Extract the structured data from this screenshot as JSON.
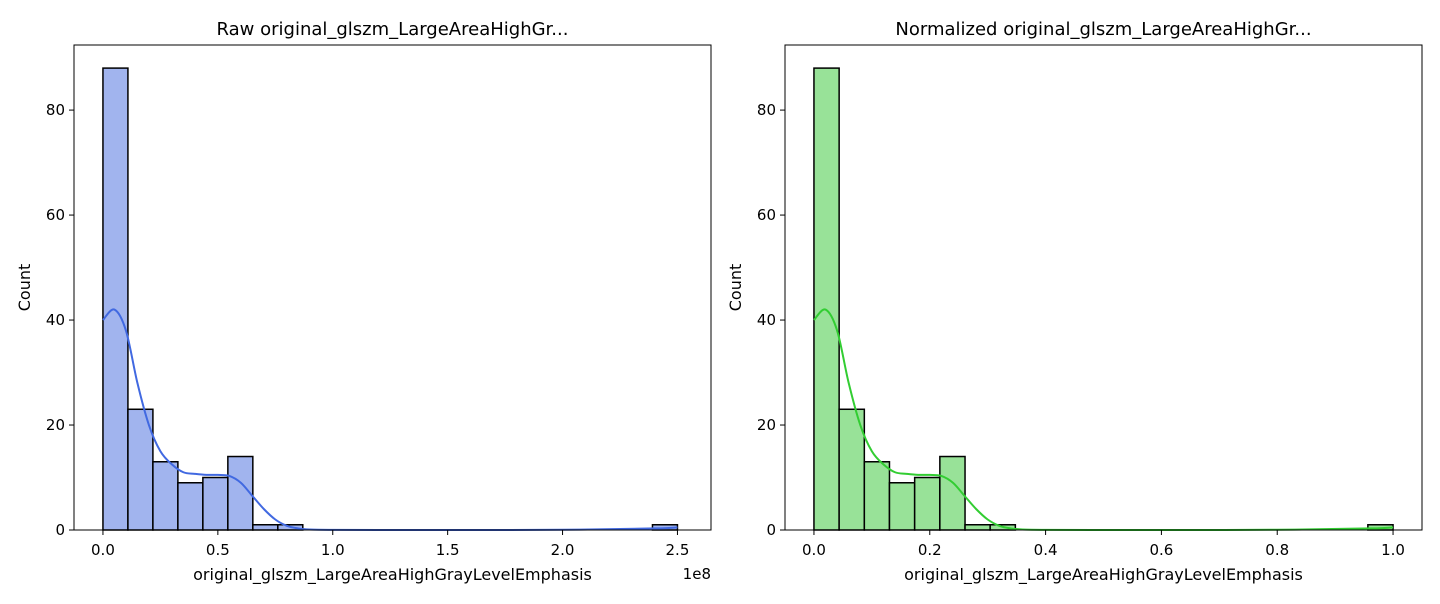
{
  "chart_data": [
    {
      "type": "histogram",
      "title": "Raw original_glszm_LargeAreaHighGr...",
      "xlabel": "original_glszm_LargeAreaHighGrayLevelEmphasis",
      "ylabel": "Count",
      "x_offset_text": "1e8",
      "xlim": [
        -0.126,
        2.646
      ],
      "ylim": [
        0,
        92.4
      ],
      "x_ticks": [
        0,
        0.5,
        1.0,
        1.5,
        2.0,
        2.5
      ],
      "x_tick_labels": [
        "0.0",
        "0.5",
        "1.0",
        "1.5",
        "2.0",
        "2.5"
      ],
      "y_ticks": [
        0,
        20,
        40,
        60,
        80
      ],
      "y_tick_labels": [
        "0",
        "20",
        "40",
        "60",
        "80"
      ],
      "bin_edges": [
        0.0,
        0.1087,
        0.2174,
        0.3261,
        0.4348,
        0.5435,
        0.6522,
        0.7609,
        0.8696,
        0.9783,
        1.087,
        1.1957,
        1.3043,
        1.413,
        1.5217,
        1.6304,
        1.7391,
        1.8478,
        1.9565,
        2.0652,
        2.1739,
        2.2826,
        2.3913,
        2.5
      ],
      "counts": [
        88,
        23,
        13,
        9,
        10,
        14,
        1,
        1,
        0,
        0,
        0,
        0,
        0,
        0,
        0,
        0,
        0,
        0,
        0,
        0,
        0,
        0,
        1
      ],
      "kde": {
        "x": [
          0.0,
          0.05,
          0.1,
          0.15,
          0.2,
          0.25,
          0.3,
          0.35,
          0.4,
          0.45,
          0.5,
          0.55,
          0.6,
          0.65,
          0.7,
          0.75,
          0.8,
          0.85,
          0.9,
          1.0,
          1.2,
          1.5,
          2.0,
          2.4,
          2.5
        ],
        "y": [
          40,
          42,
          38,
          28,
          20,
          15,
          12.5,
          11,
          10.7,
          10.5,
          10.5,
          10.3,
          9,
          6.5,
          4,
          2,
          0.8,
          0.3,
          0.1,
          0.03,
          0,
          0,
          0.05,
          0.3,
          0.5
        ]
      },
      "color": "#4169e1",
      "bar_fill": "#a1b4ee"
    },
    {
      "type": "histogram",
      "title": "Normalized original_glszm_LargeAreaHighGr...",
      "xlabel": "original_glszm_LargeAreaHighGrayLevelEmphasis",
      "ylabel": "Count",
      "x_offset_text": "",
      "xlim": [
        -0.05,
        1.05
      ],
      "ylim": [
        0,
        92.4
      ],
      "x_ticks": [
        0,
        0.2,
        0.4,
        0.6,
        0.8,
        1.0
      ],
      "x_tick_labels": [
        "0.0",
        "0.2",
        "0.4",
        "0.6",
        "0.8",
        "1.0"
      ],
      "y_ticks": [
        0,
        20,
        40,
        60,
        80
      ],
      "y_tick_labels": [
        "0",
        "20",
        "40",
        "60",
        "80"
      ],
      "bin_edges": [
        0.0,
        0.0435,
        0.087,
        0.1304,
        0.1739,
        0.2174,
        0.2609,
        0.3043,
        0.3478,
        0.3913,
        0.4348,
        0.4783,
        0.5217,
        0.5652,
        0.6087,
        0.6522,
        0.6957,
        0.7391,
        0.7826,
        0.8261,
        0.8696,
        0.913,
        0.9565,
        1.0
      ],
      "counts": [
        88,
        23,
        13,
        9,
        10,
        14,
        1,
        1,
        0,
        0,
        0,
        0,
        0,
        0,
        0,
        0,
        0,
        0,
        0,
        0,
        0,
        0,
        1
      ],
      "kde": {
        "x": [
          0.0,
          0.02,
          0.04,
          0.06,
          0.08,
          0.1,
          0.12,
          0.14,
          0.16,
          0.18,
          0.2,
          0.22,
          0.24,
          0.26,
          0.28,
          0.3,
          0.32,
          0.34,
          0.36,
          0.4,
          0.48,
          0.6,
          0.8,
          0.96,
          1.0
        ],
        "y": [
          40,
          42,
          38,
          28,
          20,
          15,
          12.5,
          11,
          10.7,
          10.5,
          10.5,
          10.3,
          9,
          6.5,
          4,
          2,
          0.8,
          0.3,
          0.1,
          0.03,
          0,
          0,
          0.05,
          0.3,
          0.5
        ]
      },
      "color": "#32cd32",
      "bar_fill": "#98e298"
    }
  ]
}
